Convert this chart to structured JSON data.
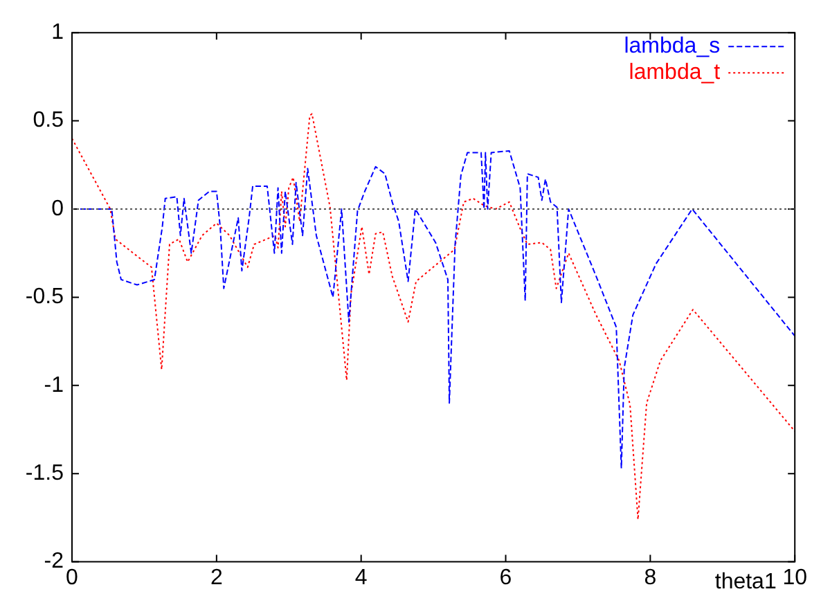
{
  "chart_data": {
    "type": "line",
    "xlabel": "theta1",
    "xlim": [
      0,
      10
    ],
    "xticks": [
      0,
      2,
      4,
      6,
      8,
      10
    ],
    "ylim": [
      -2,
      1
    ],
    "yticks": [
      -2,
      -1.5,
      -1,
      -0.5,
      0,
      0.5,
      1
    ],
    "grid": false,
    "legend": "top right",
    "marker": "none",
    "ref_lines": [
      {
        "axis": "y",
        "value": 0,
        "color": "#555555",
        "line_style": "dotted"
      }
    ],
    "series": [
      {
        "name": "lambda_s",
        "color": "#0000ff",
        "line_style": "dashed",
        "x": [
          0,
          0.55,
          0.62,
          0.68,
          0.9,
          1.14,
          1.25,
          1.29,
          1.45,
          1.5,
          1.55,
          1.65,
          1.75,
          1.9,
          2.0,
          2.05,
          2.1,
          2.2,
          2.3,
          2.35,
          2.45,
          2.5,
          2.7,
          2.8,
          2.85,
          2.9,
          2.95,
          3.05,
          3.1,
          3.19,
          3.26,
          3.38,
          3.61,
          3.73,
          3.83,
          3.95,
          4.05,
          4.2,
          4.33,
          4.43,
          4.52,
          4.65,
          4.75,
          5.03,
          5.2,
          5.22,
          5.3,
          5.38,
          5.47,
          5.66,
          5.7,
          5.72,
          5.75,
          5.8,
          6.05,
          6.2,
          6.27,
          6.3,
          6.45,
          6.5,
          6.55,
          6.62,
          6.71,
          6.77,
          6.87,
          7.25,
          7.53,
          7.6,
          7.64,
          7.76,
          8.08,
          8.58,
          10
        ],
        "values": [
          0,
          0,
          -0.3,
          -0.4,
          -0.43,
          -0.4,
          -0.1,
          0.06,
          0.07,
          -0.15,
          0.06,
          -0.25,
          0.05,
          0.1,
          0.1,
          -0.1,
          -0.45,
          -0.25,
          -0.05,
          -0.35,
          -0.05,
          0.13,
          0.13,
          -0.25,
          0.12,
          -0.25,
          0.1,
          -0.2,
          0.15,
          -0.15,
          0.23,
          -0.15,
          -0.5,
          0,
          -0.64,
          -0.01,
          0.1,
          0.24,
          0.2,
          0.04,
          -0.07,
          -0.41,
          0,
          -0.19,
          -0.4,
          -1.1,
          -0.2,
          0.19,
          0.32,
          0.32,
          0,
          0.32,
          0,
          0.32,
          0.33,
          0.12,
          -0.52,
          0.2,
          0.18,
          0.05,
          0.17,
          0.04,
          0.01,
          -0.53,
          0,
          -0.38,
          -0.67,
          -1.47,
          -0.9,
          -0.6,
          -0.31,
          0,
          -0.72
        ]
      },
      {
        "name": "lambda_t",
        "color": "#ff0000",
        "line_style": "dotted",
        "x": [
          0,
          0.53,
          0.6,
          0.91,
          1.1,
          1.24,
          1.35,
          1.48,
          1.6,
          1.8,
          2.0,
          2.18,
          2.43,
          2.52,
          2.81,
          2.85,
          2.9,
          2.95,
          3.0,
          3.06,
          3.15,
          3.29,
          3.32,
          3.57,
          3.8,
          3.86,
          4.01,
          4.11,
          4.2,
          4.3,
          4.43,
          4.65,
          4.76,
          5.29,
          5.42,
          5.55,
          5.7,
          5.86,
          6.05,
          6.2,
          6.3,
          6.5,
          6.62,
          6.7,
          6.87,
          7.25,
          7.57,
          7.72,
          7.83,
          7.95,
          8.14,
          8.59,
          10
        ],
        "values": [
          0.4,
          0,
          -0.17,
          -0.27,
          -0.33,
          -0.91,
          -0.2,
          -0.17,
          -0.3,
          -0.15,
          -0.08,
          -0.15,
          -0.33,
          -0.2,
          -0.15,
          -0.22,
          0.1,
          -0.1,
          0.12,
          0.18,
          -0.07,
          0.53,
          0.54,
          0.01,
          -0.97,
          -0.48,
          -0.1,
          -0.37,
          -0.14,
          -0.13,
          -0.38,
          -0.64,
          -0.41,
          -0.23,
          0.04,
          0.06,
          0.02,
          0,
          0.04,
          -0.11,
          -0.2,
          -0.19,
          -0.23,
          -0.45,
          -0.25,
          -0.6,
          -0.86,
          -1.11,
          -1.76,
          -1.1,
          -0.86,
          -0.57,
          -1.26
        ]
      }
    ]
  }
}
